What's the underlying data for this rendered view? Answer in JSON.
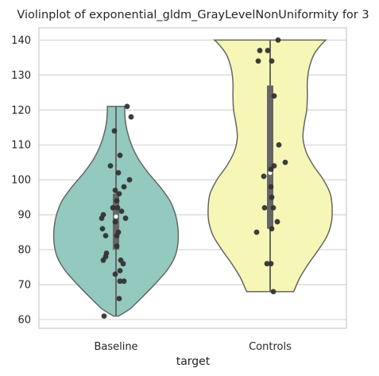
{
  "chart_data": {
    "type": "violin",
    "title": "Violinplot of exponential_gldm_GrayLevelNonUniformity for 3",
    "xlabel": "target",
    "ylabel": "",
    "categories": [
      "Baseline",
      "Controls"
    ],
    "ylim": [
      57.5,
      143.5
    ],
    "yticks": [
      60,
      70,
      80,
      90,
      100,
      110,
      120,
      130,
      140
    ],
    "ytick_labels": [
      "60",
      "70",
      "80",
      "90",
      "100",
      "110",
      "120",
      "130",
      "140"
    ],
    "grid": true,
    "colors": {
      "Baseline": "#93c9bf",
      "Controls": "#f6f6b6",
      "outline": "#666666",
      "points": "#333333",
      "box": "#666666",
      "median": "#ffffff",
      "grid": "#d0d0d0"
    },
    "violins": [
      {
        "category": "Baseline",
        "density_range": [
          61,
          121
        ],
        "density_profile": [
          [
            61,
            0.04
          ],
          [
            63,
            0.22
          ],
          [
            66,
            0.4
          ],
          [
            70,
            0.62
          ],
          [
            74,
            0.82
          ],
          [
            78,
            0.95
          ],
          [
            82,
            1.0
          ],
          [
            86,
            1.0
          ],
          [
            90,
            0.96
          ],
          [
            94,
            0.87
          ],
          [
            98,
            0.71
          ],
          [
            102,
            0.52
          ],
          [
            106,
            0.36
          ],
          [
            110,
            0.25
          ],
          [
            114,
            0.18
          ],
          [
            117,
            0.15
          ],
          [
            120,
            0.14
          ],
          [
            121,
            0.14
          ]
        ],
        "box": {
          "q1": 80,
          "q3": 96,
          "median": 89.5,
          "whisker_low": 61,
          "whisker_high": 121
        }
      },
      {
        "category": "Controls",
        "density_range": [
          68,
          140
        ],
        "density_profile": [
          [
            68,
            0.38
          ],
          [
            72,
            0.48
          ],
          [
            76,
            0.62
          ],
          [
            80,
            0.78
          ],
          [
            84,
            0.92
          ],
          [
            88,
            0.99
          ],
          [
            92,
            1.0
          ],
          [
            96,
            0.97
          ],
          [
            100,
            0.86
          ],
          [
            104,
            0.7
          ],
          [
            108,
            0.58
          ],
          [
            112,
            0.53
          ],
          [
            116,
            0.55
          ],
          [
            120,
            0.59
          ],
          [
            124,
            0.6
          ],
          [
            128,
            0.6
          ],
          [
            132,
            0.63
          ],
          [
            136,
            0.71
          ],
          [
            139,
            0.84
          ],
          [
            140,
            0.9
          ]
        ],
        "box": {
          "q1": 86,
          "q3": 127,
          "median": 102,
          "whisker_low": 68,
          "whisker_high": 140
        }
      }
    ],
    "points": [
      {
        "category": "Baseline",
        "values": [
          {
            "y": 121,
            "j": 0.14
          },
          {
            "y": 118,
            "j": 0.19
          },
          {
            "y": 114,
            "j": -0.02
          },
          {
            "y": 107,
            "j": 0.05
          },
          {
            "y": 104,
            "j": -0.07
          },
          {
            "y": 102,
            "j": 0.03
          },
          {
            "y": 100,
            "j": 0.17
          },
          {
            "y": 98,
            "j": 0.1
          },
          {
            "y": 97,
            "j": -0.01
          },
          {
            "y": 96,
            "j": 0.04
          },
          {
            "y": 94,
            "j": 0.01
          },
          {
            "y": 92,
            "j": -0.04
          },
          {
            "y": 92,
            "j": 0.02
          },
          {
            "y": 91,
            "j": 0.07
          },
          {
            "y": 90,
            "j": -0.16
          },
          {
            "y": 89,
            "j": -0.18
          },
          {
            "y": 89,
            "j": 0.12
          },
          {
            "y": 88,
            "j": -0.01
          },
          {
            "y": 86,
            "j": -0.17
          },
          {
            "y": 85,
            "j": 0.03
          },
          {
            "y": 84,
            "j": -0.13
          },
          {
            "y": 84,
            "j": 0.01
          },
          {
            "y": 81,
            "j": 0.01
          },
          {
            "y": 79,
            "j": -0.12
          },
          {
            "y": 78,
            "j": -0.13
          },
          {
            "y": 77,
            "j": -0.16
          },
          {
            "y": 77,
            "j": 0.06
          },
          {
            "y": 76,
            "j": 0.09
          },
          {
            "y": 74,
            "j": 0.05
          },
          {
            "y": 73,
            "j": -0.01
          },
          {
            "y": 71,
            "j": 0.05
          },
          {
            "y": 71,
            "j": 0.1
          },
          {
            "y": 66,
            "j": 0.04
          },
          {
            "y": 61,
            "j": -0.15
          }
        ]
      },
      {
        "category": "Controls",
        "values": [
          {
            "y": 140,
            "j": 0.1
          },
          {
            "y": 137,
            "j": -0.13
          },
          {
            "y": 137,
            "j": -0.03
          },
          {
            "y": 134,
            "j": -0.15
          },
          {
            "y": 134,
            "j": 0.02
          },
          {
            "y": 124,
            "j": 0.05
          },
          {
            "y": 110,
            "j": 0.11
          },
          {
            "y": 105,
            "j": 0.19
          },
          {
            "y": 104,
            "j": 0.05
          },
          {
            "y": 103,
            "j": 0.01
          },
          {
            "y": 101,
            "j": -0.08
          },
          {
            "y": 98,
            "j": 0.01
          },
          {
            "y": 95,
            "j": 0.02
          },
          {
            "y": 92,
            "j": -0.07
          },
          {
            "y": 92,
            "j": 0.04
          },
          {
            "y": 88,
            "j": 0.09
          },
          {
            "y": 86,
            "j": 0.02
          },
          {
            "y": 85,
            "j": -0.17
          },
          {
            "y": 76,
            "j": -0.04
          },
          {
            "y": 76,
            "j": 0.01
          },
          {
            "y": 68,
            "j": 0.04
          }
        ]
      }
    ]
  }
}
